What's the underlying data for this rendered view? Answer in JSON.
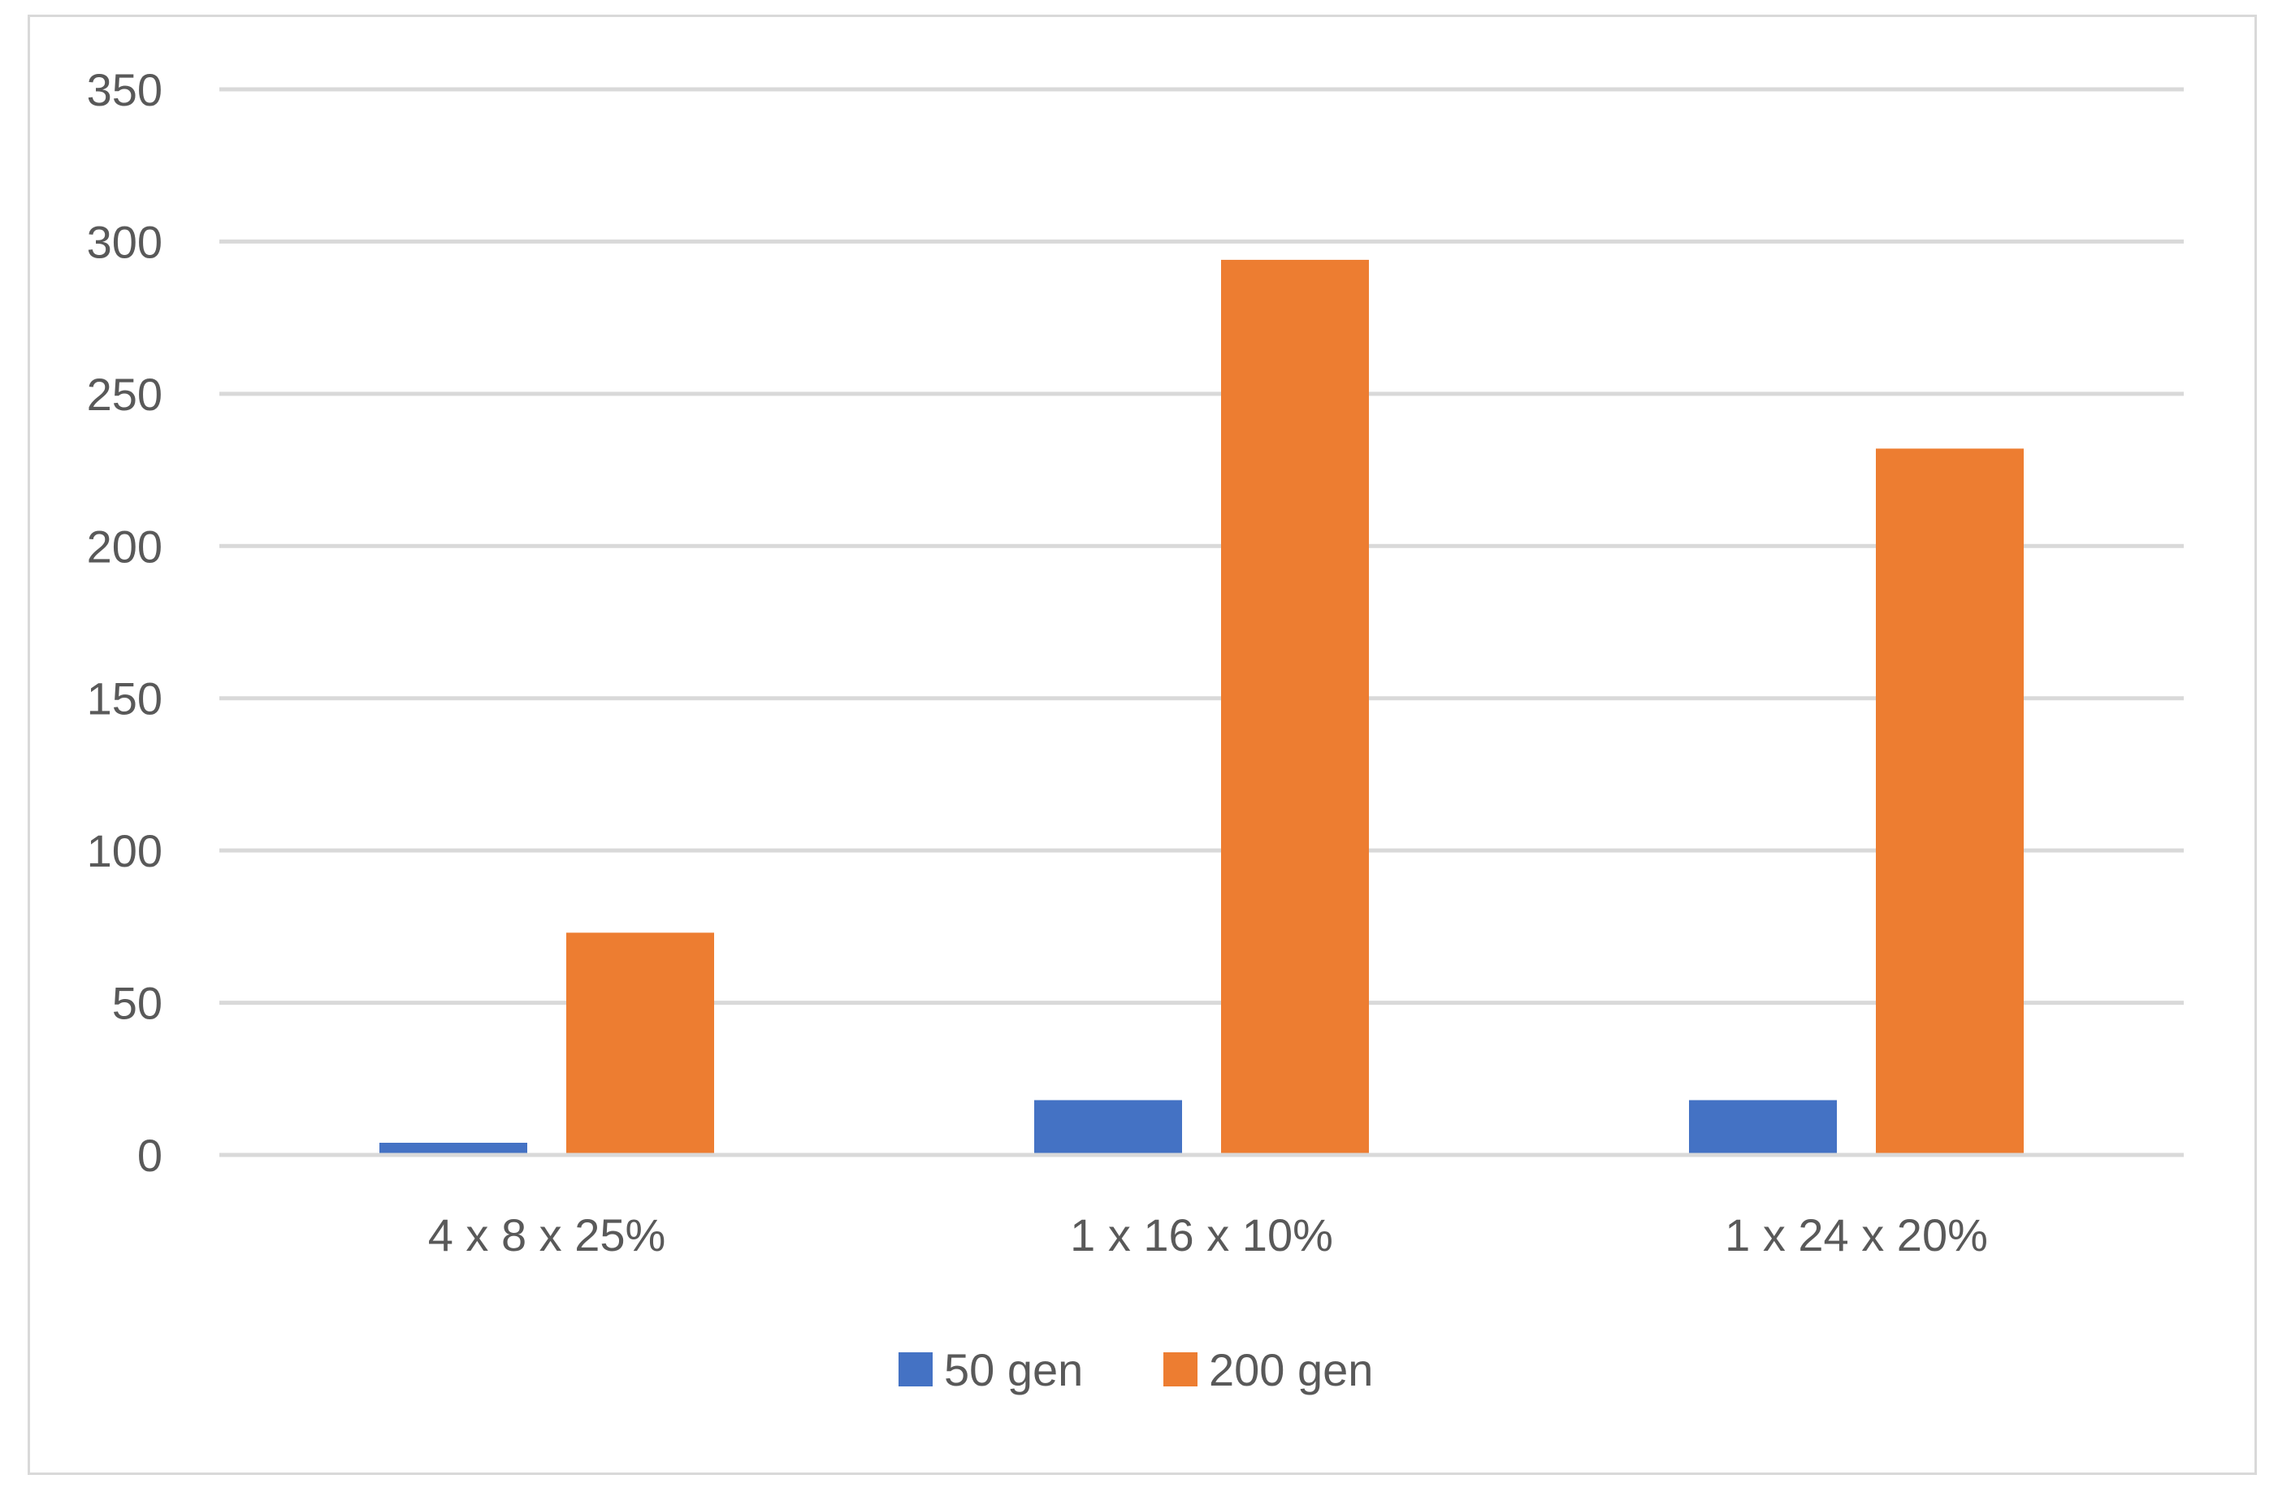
{
  "chart_data": {
    "type": "bar",
    "title": "",
    "xlabel": "",
    "ylabel": "",
    "categories": [
      "4 x 8 x 25%",
      "1 x 16 x 10%",
      "1 x 24 x 20%"
    ],
    "series": [
      {
        "name": "50 gen",
        "color": "#4472c4",
        "values": [
          4,
          18,
          18
        ]
      },
      {
        "name": "200 gen",
        "color": "#ed7d31",
        "values": [
          73,
          294,
          232
        ]
      }
    ],
    "ylim": [
      0,
      350
    ],
    "yticks": [
      0,
      50,
      100,
      150,
      200,
      250,
      300,
      350
    ],
    "grid": true,
    "legend_position": "bottom"
  }
}
